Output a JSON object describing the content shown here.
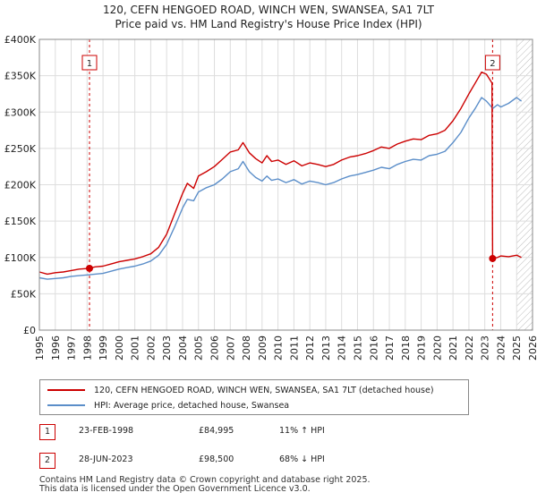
{
  "title": {
    "line1": "120, CEFN HENGOED ROAD, WINCH WEN, SWANSEA, SA1 7LT",
    "line2": "Price paid vs. HM Land Registry's House Price Index (HPI)"
  },
  "colors": {
    "property": "#cc0000",
    "hpi": "#5b8ec9",
    "grid": "#dddddd",
    "marker_box": "#cc0000",
    "forecast_hatch": "#bbbbbb"
  },
  "chart_data": {
    "type": "line",
    "xlim": [
      1995,
      2026
    ],
    "ylim": [
      0,
      400000
    ],
    "x_ticks": [
      "1995",
      "1996",
      "1997",
      "1998",
      "1999",
      "2000",
      "2001",
      "2002",
      "2003",
      "2004",
      "2005",
      "2006",
      "2007",
      "2008",
      "2009",
      "2010",
      "2011",
      "2012",
      "2013",
      "2014",
      "2015",
      "2016",
      "2017",
      "2018",
      "2019",
      "2020",
      "2021",
      "2022",
      "2023",
      "2024",
      "2025",
      "2026"
    ],
    "y_ticks": [
      {
        "value": 0,
        "label": "£0"
      },
      {
        "value": 50000,
        "label": "£50K"
      },
      {
        "value": 100000,
        "label": "£100K"
      },
      {
        "value": 150000,
        "label": "£150K"
      },
      {
        "value": 200000,
        "label": "£200K"
      },
      {
        "value": 250000,
        "label": "£250K"
      },
      {
        "value": 300000,
        "label": "£300K"
      },
      {
        "value": 350000,
        "label": "£350K"
      },
      {
        "value": 400000,
        "label": "£400K"
      }
    ],
    "forecast_start": 2025.0,
    "series": [
      {
        "name": "120, CEFN HENGOED ROAD, WINCH WEN, SWANSEA, SA1 7LT (detached house)",
        "color": "#cc0000",
        "x": [
          1995.0,
          1995.5,
          1996.0,
          1996.5,
          1997.0,
          1997.5,
          1998.15,
          1998.5,
          1999.0,
          1999.5,
          2000.0,
          2000.5,
          2001.0,
          2001.5,
          2002.0,
          2002.5,
          2003.0,
          2003.5,
          2004.0,
          2004.3,
          2004.7,
          2005.0,
          2005.5,
          2006.0,
          2006.5,
          2007.0,
          2007.5,
          2007.8,
          2008.2,
          2008.6,
          2009.0,
          2009.3,
          2009.6,
          2010.0,
          2010.5,
          2011.0,
          2011.5,
          2012.0,
          2012.5,
          2013.0,
          2013.5,
          2014.0,
          2014.5,
          2015.0,
          2015.5,
          2016.0,
          2016.5,
          2017.0,
          2017.5,
          2018.0,
          2018.5,
          2019.0,
          2019.5,
          2020.0,
          2020.5,
          2021.0,
          2021.5,
          2022.0,
          2022.4,
          2022.8,
          2023.1,
          2023.45,
          2023.49,
          2023.8,
          2024.0,
          2024.5,
          2025.0,
          2025.3
        ],
        "y": [
          80000,
          77000,
          79000,
          80000,
          82000,
          84000,
          84995,
          87000,
          88000,
          91000,
          94000,
          96000,
          98000,
          101000,
          105000,
          114000,
          132000,
          160000,
          188000,
          202000,
          195000,
          212000,
          218000,
          225000,
          235000,
          245000,
          248000,
          258000,
          244000,
          236000,
          230000,
          240000,
          232000,
          234000,
          228000,
          233000,
          226000,
          230000,
          228000,
          225000,
          228000,
          234000,
          238000,
          240000,
          243000,
          247000,
          252000,
          250000,
          256000,
          260000,
          263000,
          262000,
          268000,
          270000,
          275000,
          288000,
          305000,
          325000,
          340000,
          355000,
          352000,
          340000,
          98500,
          100000,
          102000,
          101000,
          103000,
          100000
        ]
      },
      {
        "name": "HPI: Average price, detached house, Swansea",
        "color": "#5b8ec9",
        "x": [
          1995.0,
          1995.5,
          1996.0,
          1996.5,
          1997.0,
          1997.5,
          1998.0,
          1998.5,
          1999.0,
          1999.5,
          2000.0,
          2000.5,
          2001.0,
          2001.5,
          2002.0,
          2002.5,
          2003.0,
          2003.5,
          2004.0,
          2004.3,
          2004.7,
          2005.0,
          2005.5,
          2006.0,
          2006.5,
          2007.0,
          2007.5,
          2007.8,
          2008.2,
          2008.6,
          2009.0,
          2009.3,
          2009.6,
          2010.0,
          2010.5,
          2011.0,
          2011.5,
          2012.0,
          2012.5,
          2013.0,
          2013.5,
          2014.0,
          2014.5,
          2015.0,
          2015.5,
          2016.0,
          2016.5,
          2017.0,
          2017.5,
          2018.0,
          2018.5,
          2019.0,
          2019.5,
          2020.0,
          2020.5,
          2021.0,
          2021.5,
          2022.0,
          2022.4,
          2022.8,
          2023.1,
          2023.5,
          2023.8,
          2024.0,
          2024.5,
          2025.0,
          2025.3
        ],
        "y": [
          72000,
          70000,
          71000,
          72000,
          74000,
          75000,
          76000,
          77000,
          78000,
          81000,
          84000,
          86000,
          88000,
          91000,
          95000,
          103000,
          118000,
          142000,
          168000,
          180000,
          178000,
          190000,
          196000,
          200000,
          208000,
          218000,
          222000,
          232000,
          218000,
          210000,
          205000,
          212000,
          206000,
          208000,
          203000,
          207000,
          201000,
          205000,
          203000,
          200000,
          203000,
          208000,
          212000,
          214000,
          217000,
          220000,
          224000,
          222000,
          228000,
          232000,
          235000,
          234000,
          240000,
          242000,
          246000,
          258000,
          272000,
          292000,
          305000,
          320000,
          315000,
          305000,
          310000,
          307000,
          312000,
          320000,
          315000
        ]
      }
    ],
    "sales": [
      {
        "id": "1",
        "x": 1998.15,
        "y": 84995,
        "date": "23-FEB-1998",
        "price": "£84,995",
        "hpi_change": "11% ↑ HPI"
      },
      {
        "id": "2",
        "x": 2023.49,
        "y": 98500,
        "date": "28-JUN-2023",
        "price": "£98,500",
        "hpi_change": "68% ↓ HPI"
      }
    ]
  },
  "legend": {
    "property_label": "120, CEFN HENGOED ROAD, WINCH WEN, SWANSEA, SA1 7LT (detached house)",
    "hpi_label": "HPI: Average price, detached house, Swansea"
  },
  "footer": {
    "line1": "Contains HM Land Registry data © Crown copyright and database right 2025.",
    "line2": "This data is licensed under the Open Government Licence v3.0."
  }
}
